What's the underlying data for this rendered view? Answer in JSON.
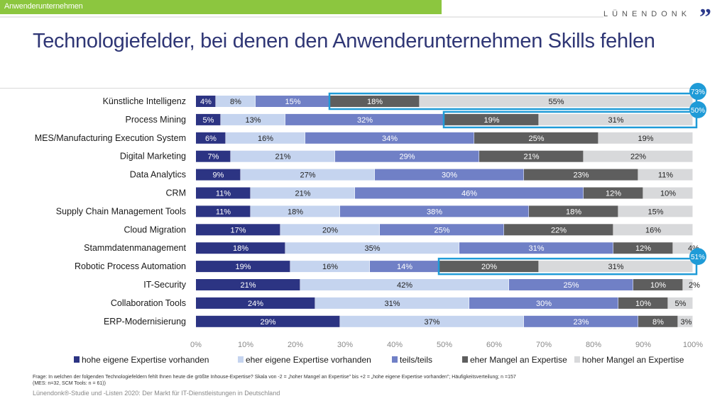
{
  "header": {
    "section_label": "Anwenderunternehmen",
    "logo_text": "LÜNENDONK",
    "logo_mark": "”",
    "title": "Technologiefelder, bei denen den Anwenderunternehmen Skills fehlen"
  },
  "footer": {
    "question": "Frage: In welchen der folgenden Technologiefeldern fehlt Ihnen heute die größte Inhouse-Expertise? Skala von -2 = „hoher Mangel an Expertise\" bis +2 = „hohe eigene Expertise vorhanden\"; Häufigkeitsverteilung; n =157",
    "question_note": "(MES: n=32, SCM Tools: n = 61))",
    "source": "Lünendonk®-Studie und -Listen 2020: Der Markt für IT-Dienstleistungen in Deutschland"
  },
  "colors": {
    "s1": "#2c3483",
    "s2": "#c5d4ef",
    "s3": "#7080c6",
    "s4": "#5e5e5e",
    "s5": "#d8d9db",
    "highlight": "#1f9bd7"
  },
  "chart_data": {
    "type": "bar",
    "orientation": "horizontal",
    "stacked": true,
    "title": "Technologiefelder, bei denen den Anwenderunternehmen Skills fehlen",
    "xlabel": "",
    "ylabel": "",
    "xlim": [
      0,
      100
    ],
    "x_ticks": [
      "0%",
      "10%",
      "20%",
      "30%",
      "40%",
      "50%",
      "60%",
      "70%",
      "80%",
      "90%",
      "100%"
    ],
    "grid": false,
    "legend_position": "bottom",
    "categories": [
      "Künstliche Intelligenz",
      "Process Mining",
      "MES/Manufacturing Execution System",
      "Digital Marketing",
      "Data Analytics",
      "CRM",
      "Supply Chain Management Tools",
      "Cloud Migration",
      "Stammdatenmanagement",
      "Robotic Process Automation",
      "IT-Security",
      "Collaboration Tools",
      "ERP-Modernisierung"
    ],
    "series": [
      {
        "name": "hohe eigene Expertise vorhanden",
        "color_key": "s1",
        "label_color": "#ffffff",
        "values": [
          4,
          5,
          6,
          7,
          9,
          11,
          11,
          17,
          18,
          19,
          21,
          24,
          29
        ]
      },
      {
        "name": "eher eigene Expertise vorhanden",
        "color_key": "s2",
        "label_color": "#222222",
        "values": [
          8,
          13,
          16,
          21,
          27,
          21,
          18,
          20,
          35,
          16,
          42,
          31,
          37
        ]
      },
      {
        "name": "teils/teils",
        "color_key": "s3",
        "label_color": "#ffffff",
        "values": [
          15,
          32,
          34,
          29,
          30,
          46,
          38,
          25,
          31,
          14,
          25,
          30,
          23
        ]
      },
      {
        "name": "eher Mangel an Expertise",
        "color_key": "s4",
        "label_color": "#ffffff",
        "values": [
          18,
          19,
          25,
          21,
          23,
          12,
          18,
          22,
          12,
          20,
          10,
          10,
          8
        ]
      },
      {
        "name": "hoher Mangel an Expertise",
        "color_key": "s5",
        "label_color": "#222222",
        "values": [
          55,
          31,
          19,
          22,
          11,
          10,
          15,
          16,
          4,
          31,
          2,
          5,
          3
        ]
      }
    ],
    "annotations": [
      {
        "category": "Künstliche Intelligenz",
        "label": "73%",
        "covers_series": [
          "eher Mangel an Expertise",
          "hoher Mangel an Expertise"
        ]
      },
      {
        "category": "Process Mining",
        "label": "50%",
        "covers_series": [
          "eher Mangel an Expertise",
          "hoher Mangel an Expertise"
        ]
      },
      {
        "category": "Robotic Process Automation",
        "label": "51%",
        "covers_series": [
          "eher Mangel an Expertise",
          "hoher Mangel an Expertise"
        ]
      }
    ]
  }
}
